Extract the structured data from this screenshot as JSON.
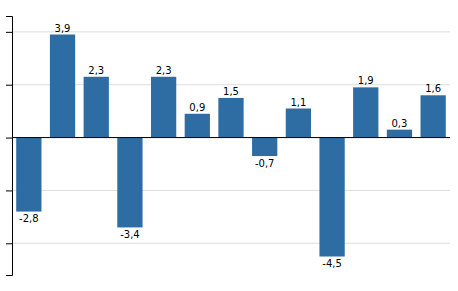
{
  "chart_data": {
    "type": "bar",
    "categories": [
      null,
      null,
      null,
      null,
      null,
      null,
      null,
      null,
      null,
      null,
      null,
      null,
      null
    ],
    "values": [
      -2.8,
      3.9,
      2.3,
      -3.4,
      2.3,
      0.9,
      1.5,
      -0.7,
      1.1,
      -4.5,
      1.9,
      0.3,
      1.6
    ],
    "value_labels": [
      "-2,8",
      "3,9",
      "2,3",
      "-3,4",
      "2,3",
      "0,9",
      "1,5",
      "-0,7",
      "1,1",
      "-4,5",
      "1,9",
      "0,3",
      "1,6"
    ],
    "color": "#2E6DA4",
    "ylim": [
      -5.2,
      4.6
    ],
    "yticks": [
      -4,
      -2,
      0,
      2,
      4
    ],
    "grid": true,
    "data_labels": true,
    "tick_labels": false
  }
}
